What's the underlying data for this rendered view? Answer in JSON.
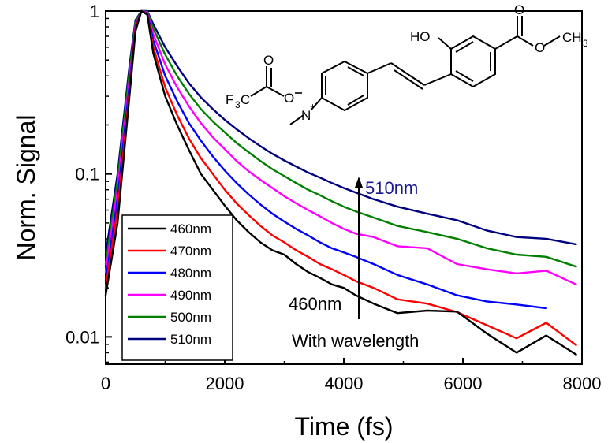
{
  "chart_data": {
    "type": "line",
    "title": "",
    "xlabel": "Time (fs)",
    "ylabel": "Norm. Signal",
    "xlim": [
      0,
      8000
    ],
    "ylim": [
      0.0068,
      1
    ],
    "yscale": "log",
    "grid": false,
    "legend_placement": "bottom-left",
    "x_ticks": [
      "0",
      "2000",
      "4000",
      "6000",
      "8000"
    ],
    "y_ticks": [
      "0.01",
      "0.1",
      "1"
    ],
    "series": [
      {
        "name": "460nm",
        "color": "#000000",
        "x": [
          0,
          200,
          400,
          500,
          600,
          700,
          800,
          1000,
          1200,
          1400,
          1600,
          1800,
          2000,
          2200,
          2400,
          2600,
          2800,
          3000,
          3200,
          3400,
          3600,
          3800,
          4000,
          4200,
          4500,
          4900,
          5400,
          5900,
          6400,
          6900,
          7400,
          7900
        ],
        "y": [
          0.018,
          0.05,
          0.3,
          0.75,
          1.0,
          0.95,
          0.55,
          0.3,
          0.2,
          0.14,
          0.1,
          0.08,
          0.064,
          0.052,
          0.044,
          0.038,
          0.034,
          0.032,
          0.028,
          0.025,
          0.023,
          0.021,
          0.02,
          0.018,
          0.016,
          0.014,
          0.0145,
          0.0143,
          0.0105,
          0.008,
          0.0102,
          0.0078
        ]
      },
      {
        "name": "470nm",
        "color": "#ff0000",
        "x": [
          0,
          200,
          400,
          500,
          600,
          700,
          800,
          1000,
          1200,
          1400,
          1600,
          1800,
          2000,
          2200,
          2400,
          2600,
          2800,
          3000,
          3200,
          3400,
          3600,
          3800,
          4000,
          4200,
          4500,
          4900,
          5400,
          5900,
          6400,
          6900,
          7400,
          7900
        ],
        "y": [
          0.02,
          0.06,
          0.32,
          0.78,
          1.0,
          0.96,
          0.6,
          0.34,
          0.23,
          0.165,
          0.125,
          0.1,
          0.08,
          0.066,
          0.056,
          0.048,
          0.042,
          0.038,
          0.034,
          0.031,
          0.028,
          0.026,
          0.024,
          0.022,
          0.02,
          0.017,
          0.016,
          0.0142,
          0.0118,
          0.0098,
          0.0122,
          0.0089
        ]
      },
      {
        "name": "480nm",
        "color": "#0000ff",
        "x": [
          0,
          200,
          400,
          500,
          600,
          700,
          800,
          1000,
          1200,
          1400,
          1600,
          1800,
          2000,
          2200,
          2400,
          2600,
          2800,
          3000,
          3200,
          3400,
          3600,
          3800,
          4000,
          4200,
          4500,
          4900,
          5400,
          5900,
          6400,
          6900,
          7400
        ],
        "y": [
          0.022,
          0.07,
          0.35,
          0.8,
          1.0,
          0.97,
          0.66,
          0.4,
          0.28,
          0.205,
          0.16,
          0.128,
          0.105,
          0.088,
          0.075,
          0.065,
          0.057,
          0.051,
          0.046,
          0.042,
          0.038,
          0.035,
          0.033,
          0.031,
          0.028,
          0.024,
          0.021,
          0.018,
          0.0165,
          0.0158,
          0.015
        ]
      },
      {
        "name": "490nm",
        "color": "#ff00ff",
        "x": [
          0,
          200,
          400,
          500,
          600,
          700,
          800,
          1000,
          1200,
          1400,
          1600,
          1800,
          2000,
          2200,
          2400,
          2600,
          2800,
          3000,
          3200,
          3400,
          3600,
          3800,
          4000,
          4200,
          4500,
          4900,
          5400,
          5900,
          6400,
          6900,
          7400,
          7900
        ],
        "y": [
          0.025,
          0.08,
          0.38,
          0.82,
          1.0,
          0.98,
          0.72,
          0.47,
          0.34,
          0.26,
          0.205,
          0.168,
          0.142,
          0.12,
          0.104,
          0.092,
          0.082,
          0.073,
          0.066,
          0.06,
          0.055,
          0.05,
          0.046,
          0.043,
          0.041,
          0.036,
          0.035,
          0.028,
          0.026,
          0.0245,
          0.0255,
          0.021
        ]
      },
      {
        "name": "500nm",
        "color": "#008000",
        "x": [
          0,
          200,
          400,
          500,
          600,
          700,
          800,
          1000,
          1200,
          1400,
          1600,
          1800,
          2000,
          2200,
          2400,
          2600,
          2800,
          3000,
          3200,
          3400,
          3600,
          3800,
          4000,
          4200,
          4500,
          4900,
          5400,
          5900,
          6400,
          6900,
          7400,
          7900
        ],
        "y": [
          0.028,
          0.09,
          0.42,
          0.85,
          1.0,
          0.99,
          0.78,
          0.54,
          0.4,
          0.31,
          0.25,
          0.21,
          0.18,
          0.155,
          0.136,
          0.12,
          0.107,
          0.097,
          0.088,
          0.08,
          0.074,
          0.068,
          0.063,
          0.059,
          0.054,
          0.048,
          0.044,
          0.04,
          0.035,
          0.032,
          0.031,
          0.027
        ]
      },
      {
        "name": "510nm",
        "color": "#00007f",
        "x": [
          0,
          200,
          400,
          500,
          600,
          700,
          800,
          1000,
          1200,
          1400,
          1600,
          1800,
          2000,
          2200,
          2400,
          2600,
          2800,
          3000,
          3200,
          3400,
          3600,
          3800,
          4000,
          4200,
          4500,
          4900,
          5400,
          5900,
          6400,
          6900,
          7400,
          7900
        ],
        "y": [
          0.032,
          0.1,
          0.46,
          0.88,
          1.0,
          1.0,
          0.83,
          0.6,
          0.46,
          0.36,
          0.295,
          0.25,
          0.215,
          0.188,
          0.166,
          0.148,
          0.133,
          0.121,
          0.111,
          0.102,
          0.095,
          0.088,
          0.082,
          0.077,
          0.07,
          0.063,
          0.057,
          0.052,
          0.045,
          0.041,
          0.04,
          0.037
        ]
      }
    ],
    "annotations": [
      {
        "text": "510nm",
        "color": "#1a1a8c"
      },
      {
        "text": "460nm",
        "color": "#000000"
      },
      {
        "text": "With wavelength",
        "color": "#000000"
      }
    ]
  },
  "molecule": {
    "labels": {
      "ho": "HO",
      "o": "O",
      "ch3": "CH",
      "three": "3",
      "n": "N",
      "plus": "+",
      "f3c": "F",
      "f3c_tail": "C",
      "o_minus": "O"
    }
  }
}
